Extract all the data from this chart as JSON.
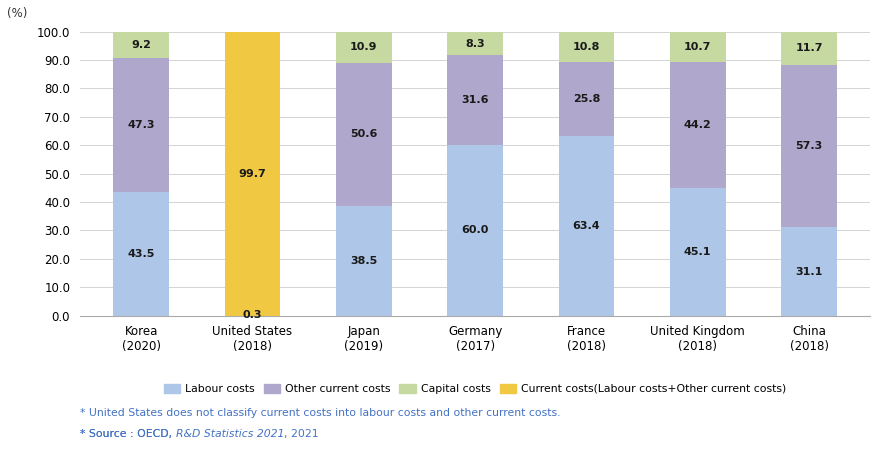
{
  "categories": [
    "Korea\n(2020)",
    "United States\n(2018)",
    "Japan\n(2019)",
    "Germany\n(2017)",
    "France\n(2018)",
    "United Kingdom\n(2018)",
    "China\n(2018)"
  ],
  "labour_costs": [
    43.5,
    0,
    38.5,
    60.0,
    63.4,
    45.1,
    31.1
  ],
  "other_current_costs": [
    47.3,
    0,
    50.6,
    31.6,
    25.8,
    44.2,
    57.3
  ],
  "capital_costs": [
    9.2,
    0.3,
    10.9,
    8.3,
    10.8,
    10.7,
    11.7
  ],
  "current_costs_combined": [
    0,
    99.7,
    0,
    0,
    0,
    0,
    0
  ],
  "labour_color": "#aec6e8",
  "other_current_color": "#b0a8cc",
  "capital_color": "#c5d9a0",
  "current_combined_color": "#f0c842",
  "unit_label": "(%)",
  "ylim": [
    0,
    100
  ],
  "yticks": [
    0.0,
    10.0,
    20.0,
    30.0,
    40.0,
    50.0,
    60.0,
    70.0,
    80.0,
    90.0,
    100.0
  ],
  "note1": "* United States does not classify current costs into labour costs and other current costs.",
  "note2_prefix": "* Source : OECD, ",
  "note2_italic": "R&D Statistics 2021",
  "note2_suffix": ", 2021",
  "legend_labels": [
    "Labour costs",
    "Other current costs",
    "Capital costs",
    "Current costs(Labour costs+Other current costs)"
  ],
  "background_color": "#ffffff",
  "note_color": "#4472c4",
  "label_values": {
    "labour": [
      43.5,
      null,
      38.5,
      60.0,
      63.4,
      45.1,
      31.1
    ],
    "other": [
      47.3,
      null,
      50.6,
      31.6,
      25.8,
      44.2,
      57.3
    ],
    "capital": [
      9.2,
      0.3,
      10.9,
      8.3,
      10.8,
      10.7,
      11.7
    ],
    "combined": [
      null,
      99.7,
      null,
      null,
      null,
      null,
      null
    ]
  }
}
